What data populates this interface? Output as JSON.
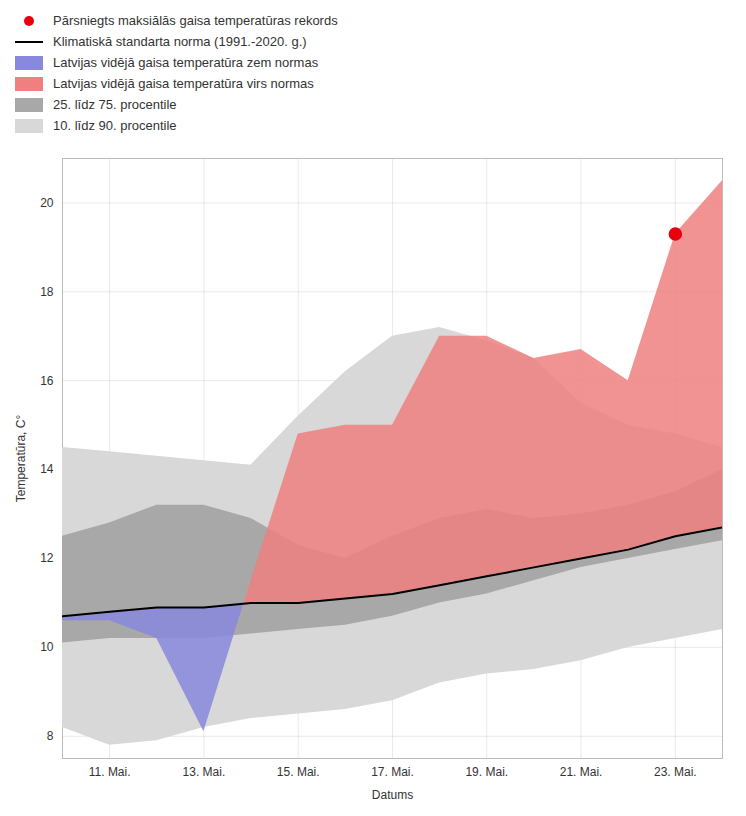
{
  "chart_data": {
    "type": "area",
    "xlabel": "Datums",
    "ylabel": "Temperatūra, C°",
    "x": [
      10,
      11,
      12,
      13,
      14,
      15,
      16,
      17,
      18,
      19,
      20,
      21,
      22,
      23,
      24
    ],
    "series": [
      {
        "name": "Pārsniegts maksiālās gaisa temperatūras rekords",
        "type": "scatter",
        "color": "#e8000d",
        "x": [
          23
        ],
        "values": [
          19.3
        ]
      },
      {
        "name": "Klimatiskā standarta norma (1991.-2020. g.)",
        "type": "line",
        "color": "#000000",
        "values": [
          10.7,
          10.8,
          10.9,
          10.9,
          11.0,
          11.0,
          11.1,
          11.2,
          11.4,
          11.6,
          11.8,
          12.0,
          12.2,
          12.5,
          12.7
        ]
      },
      {
        "name": "Latvijas vidējā gaisa temperatūra zem normas",
        "type": "area",
        "color": "#8888dd",
        "low": [
          10.6,
          10.6,
          10.2,
          8.1,
          11.5,
          14.8,
          15.0,
          15.0,
          17.0,
          17.0,
          16.5,
          16.7,
          16.0,
          19.3,
          20.5
        ],
        "high": [
          10.7,
          10.8,
          10.9,
          10.9,
          11.0,
          11.0,
          11.1,
          11.2,
          11.4,
          11.6,
          11.8,
          12.0,
          12.2,
          12.5,
          12.7
        ]
      },
      {
        "name": "Latvijas vidējā gaisa temperatūra virs normas",
        "type": "area",
        "color": "#f08080",
        "low": [
          10.7,
          10.8,
          10.9,
          10.9,
          11.0,
          11.0,
          11.1,
          11.2,
          11.4,
          11.6,
          11.8,
          12.0,
          12.2,
          12.5,
          12.7
        ],
        "high": [
          10.6,
          10.6,
          10.2,
          8.1,
          11.5,
          14.8,
          15.0,
          15.0,
          17.0,
          17.0,
          16.5,
          16.7,
          16.0,
          19.3,
          20.5
        ]
      },
      {
        "name": "25. līdz 75. procentile",
        "type": "band",
        "color": "#a8a8a8",
        "low": [
          10.1,
          10.2,
          10.2,
          10.2,
          10.3,
          10.4,
          10.5,
          10.7,
          11.0,
          11.2,
          11.5,
          11.8,
          12.0,
          12.2,
          12.4
        ],
        "high": [
          12.5,
          12.8,
          13.2,
          13.2,
          12.9,
          12.3,
          12.0,
          12.5,
          12.9,
          13.1,
          12.9,
          13.0,
          13.2,
          13.5,
          14.0
        ]
      },
      {
        "name": "10. līdz 90. procentile",
        "type": "band",
        "color": "#d8d8d8",
        "low": [
          8.2,
          7.8,
          7.9,
          8.2,
          8.4,
          8.5,
          8.6,
          8.8,
          9.2,
          9.4,
          9.5,
          9.7,
          10.0,
          10.2,
          10.4
        ],
        "high": [
          14.5,
          14.4,
          14.3,
          14.2,
          14.1,
          15.2,
          16.2,
          17.0,
          17.2,
          16.9,
          16.5,
          15.5,
          15.0,
          14.8,
          14.5
        ]
      }
    ],
    "xlim": [
      10,
      24
    ],
    "xticks": [
      {
        "value": 11,
        "label": "11. Mai."
      },
      {
        "value": 13,
        "label": "13. Mai."
      },
      {
        "value": 15,
        "label": "15. Mai."
      },
      {
        "value": 17,
        "label": "17. Mai."
      },
      {
        "value": 19,
        "label": "19. Mai."
      },
      {
        "value": 21,
        "label": "21. Mai."
      },
      {
        "value": 23,
        "label": "23. Mai."
      }
    ],
    "ylim": [
      7.5,
      21.0
    ],
    "yticks": [
      8,
      10,
      12,
      14,
      16,
      18,
      20
    ],
    "grid": true,
    "legend": "top"
  }
}
